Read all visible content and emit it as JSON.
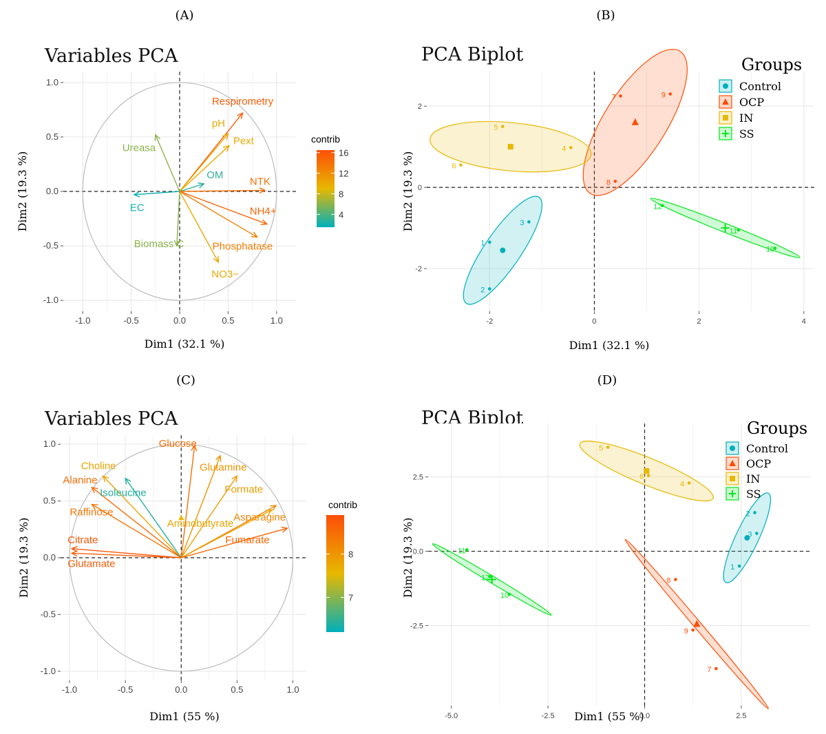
{
  "chart_data": [
    {
      "panel_label": "(A)",
      "type": "scatter",
      "subtype": "pca-variables",
      "title": "Variables PCA",
      "xlabel": "Dim1 (32.1 %)",
      "ylabel": "Dim2 (19.3 %)",
      "xlim": [
        -1.2,
        1.2
      ],
      "ylim": [
        -1.1,
        1.1
      ],
      "xticks": [
        "-1.0",
        "-0.5",
        "0.0",
        "0.5",
        "1.0"
      ],
      "yticks": [
        "-1.0",
        "-0.5",
        "0.0",
        "0.5",
        "1.0"
      ],
      "legend": {
        "title": "contrib",
        "ticks": [
          "16",
          "12",
          "8",
          "4"
        ],
        "tick_values": [
          16,
          12,
          8,
          4
        ],
        "min": 1.5,
        "max": 16.5,
        "colors": [
          "#00AFBB",
          "#E7B800",
          "#FC4E07"
        ],
        "position": "right"
      },
      "vectors": [
        {
          "name": "Respirometry",
          "x": 0.65,
          "y": 0.72,
          "contrib": 15.5
        },
        {
          "name": "pH",
          "x": 0.5,
          "y": 0.53,
          "contrib": 10
        },
        {
          "name": "Pext",
          "x": 0.51,
          "y": 0.42,
          "contrib": 10
        },
        {
          "name": "OM",
          "x": 0.25,
          "y": 0.07,
          "contrib": 3
        },
        {
          "name": "NTK",
          "x": 0.88,
          "y": 0.01,
          "contrib": 14
        },
        {
          "name": "NH4+",
          "x": 0.9,
          "y": -0.3,
          "contrib": 15
        },
        {
          "name": "Phosphatase",
          "x": 0.8,
          "y": -0.42,
          "contrib": 13
        },
        {
          "name": "NO3−",
          "x": 0.4,
          "y": -0.65,
          "contrib": 10
        },
        {
          "name": "Ureasa",
          "x": -0.25,
          "y": 0.52,
          "contrib": 6
        },
        {
          "name": "EC",
          "x": -0.47,
          "y": -0.03,
          "contrib": 2
        },
        {
          "name": "Biomass C",
          "x": -0.03,
          "y": -0.5,
          "contrib": 6
        }
      ]
    },
    {
      "panel_label": "(B)",
      "type": "scatter",
      "subtype": "pca-biplot",
      "title": "PCA Biplot",
      "xlabel": "Dim1 (32.1 %)",
      "ylabel": "Dim2 (19.3 %)",
      "xlim": [
        -3.2,
        4.2
      ],
      "ylim": [
        -3.05,
        2.85
      ],
      "xticks": [
        "-2",
        "0",
        "2",
        "4"
      ],
      "yticks": [
        "-2",
        "0",
        "2"
      ],
      "legend_title": "Groups",
      "groups": [
        {
          "name": "Control",
          "color": "#00AFBB",
          "shape": "circle",
          "center": [
            -1.75,
            -1.55
          ],
          "ellipse": {
            "rx": 1.48,
            "ry": 0.36,
            "angle": 62
          },
          "points": [
            {
              "label": "1",
              "x": -2.0,
              "y": -1.35
            },
            {
              "label": "2",
              "x": -2.0,
              "y": -2.5
            },
            {
              "label": "3",
              "x": -1.25,
              "y": -0.85
            }
          ]
        },
        {
          "name": "OCP",
          "color": "#FC4E07",
          "shape": "triangle",
          "center": [
            0.78,
            1.6
          ],
          "ellipse": {
            "rx": 1.95,
            "ry": 0.62,
            "angle": 64
          },
          "points": [
            {
              "label": "7",
              "x": 0.5,
              "y": 2.25
            },
            {
              "label": "9",
              "x": 1.45,
              "y": 2.3
            },
            {
              "label": "8",
              "x": 0.4,
              "y": 0.15
            }
          ]
        },
        {
          "name": "IN",
          "color": "#E7B800",
          "shape": "square",
          "center": [
            -1.6,
            1.0
          ],
          "ellipse": {
            "rx": 1.55,
            "ry": 0.59,
            "angle": -7
          },
          "points": [
            {
              "label": "5",
              "x": -1.75,
              "y": 1.5
            },
            {
              "label": "4",
              "x": -0.45,
              "y": 0.98
            },
            {
              "label": "6",
              "x": -2.55,
              "y": 0.55
            }
          ]
        },
        {
          "name": "SS",
          "color": "#00E61A",
          "shape": "cross",
          "center": [
            2.5,
            -1.0
          ],
          "ellipse": {
            "rx": 1.6,
            "ry": 0.1,
            "angle": -27
          },
          "points": [
            {
              "label": "12",
              "x": 1.3,
              "y": -0.45
            },
            {
              "label": "11",
              "x": 2.75,
              "y": -1.05
            },
            {
              "label": "10",
              "x": 3.45,
              "y": -1.5
            }
          ]
        }
      ]
    },
    {
      "panel_label": "(C)",
      "type": "scatter",
      "subtype": "pca-variables",
      "title": "Variables PCA",
      "xlabel": "Dim1 (55 %)",
      "ylabel": "Dim2 (19.3 %)",
      "xlim": [
        -1.08,
        1.12
      ],
      "ylim": [
        -1.08,
        1.08
      ],
      "xticks": [
        "-1.0",
        "-0.5",
        "0.0",
        "0.5",
        "1.0"
      ],
      "yticks": [
        "-1.0",
        "-0.5",
        "0.0",
        "0.5",
        "1.0"
      ],
      "legend": {
        "title": "contrib",
        "ticks": [
          "8",
          "7"
        ],
        "tick_values": [
          8,
          7
        ],
        "min": 6.2,
        "max": 8.9,
        "colors": [
          "#00AFBB",
          "#E7B800",
          "#FC4E07"
        ],
        "position": "right"
      },
      "vectors": [
        {
          "name": "Glucose",
          "x": 0.12,
          "y": 0.99,
          "contrib": 8.5
        },
        {
          "name": "Glutamine",
          "x": 0.35,
          "y": 0.9,
          "contrib": 8
        },
        {
          "name": "Formate",
          "x": 0.5,
          "y": 0.72,
          "contrib": 7.9
        },
        {
          "name": "Asparagine",
          "x": 0.85,
          "y": 0.46,
          "contrib": 8.2
        },
        {
          "name": "Aminobutyrate",
          "x": 0.81,
          "y": 0.42,
          "contrib": 7.8
        },
        {
          "name": "Fumarate",
          "x": 0.95,
          "y": 0.26,
          "contrib": 8.6
        },
        {
          "name": "Choline",
          "x": -0.7,
          "y": 0.72,
          "contrib": 7.8
        },
        {
          "name": "Alanine",
          "x": -0.8,
          "y": 0.62,
          "contrib": 8.5
        },
        {
          "name": "Isoleucine",
          "x": -0.5,
          "y": 0.7,
          "contrib": 6.4
        },
        {
          "name": "Raffinose",
          "x": -0.8,
          "y": 0.47,
          "contrib": 8.4
        },
        {
          "name": "Citrate",
          "x": -0.98,
          "y": 0.08,
          "contrib": 8.8
        },
        {
          "name": "Glutamate",
          "x": -0.98,
          "y": 0.04,
          "contrib": 8.7
        }
      ],
      "extra_marks": [
        {
          "type": "triangle",
          "x": 0.0,
          "y": 0.35,
          "color": "#E7B800"
        }
      ]
    },
    {
      "panel_label": "(D)",
      "type": "scatter",
      "subtype": "pca-biplot",
      "title": "PCA Biplot",
      "xlabel": "Dim1 (55 %)",
      "ylabel": "Dim2 (19.3 %)",
      "xlim": [
        -5.6,
        4.3
      ],
      "ylim": [
        -5.2,
        4.3
      ],
      "xticks": [
        "-5.0",
        "-2.5",
        "0.0",
        "2.5"
      ],
      "yticks": [
        "2.5",
        "0.0",
        "-2.5"
      ],
      "legend_title": "Groups",
      "groups": [
        {
          "name": "Control",
          "color": "#00AFBB",
          "shape": "circle",
          "center": [
            2.65,
            0.45
          ],
          "ellipse": {
            "rx": 1.6,
            "ry": 0.3,
            "angle": 70
          },
          "points": [
            {
              "label": "1",
              "x": 2.45,
              "y": -0.5
            },
            {
              "label": "2",
              "x": 2.85,
              "y": 1.3
            },
            {
              "label": "3",
              "x": 2.9,
              "y": 0.6
            }
          ]
        },
        {
          "name": "OCP",
          "color": "#FC4E07",
          "shape": "triangle",
          "center": [
            1.35,
            -2.45
          ],
          "ellipse": {
            "rx": 3.4,
            "ry": 0.1,
            "angle": -57
          },
          "points": [
            {
              "label": "8",
              "x": 0.8,
              "y": -0.95
            },
            {
              "label": "9",
              "x": 1.25,
              "y": -2.65
            },
            {
              "label": "7",
              "x": 1.85,
              "y": -3.95
            }
          ]
        },
        {
          "name": "IN",
          "color": "#E7B800",
          "shape": "square",
          "center": [
            0.05,
            2.7
          ],
          "ellipse": {
            "rx": 1.95,
            "ry": 0.42,
            "angle": -28
          },
          "points": [
            {
              "label": "5",
              "x": -0.95,
              "y": 3.5
            },
            {
              "label": "6",
              "x": 0.1,
              "y": 2.55
            },
            {
              "label": "4",
              "x": 1.15,
              "y": 2.3
            }
          ]
        },
        {
          "name": "SS",
          "color": "#00E61A",
          "shape": "cross",
          "center": [
            -3.95,
            -0.95
          ],
          "ellipse": {
            "rx": 1.95,
            "ry": 0.1,
            "angle": -38
          },
          "points": [
            {
              "label": "11",
              "x": -4.6,
              "y": 0.05
            },
            {
              "label": "12",
              "x": -4.0,
              "y": -0.85
            },
            {
              "label": "10",
              "x": -3.5,
              "y": -1.45
            }
          ]
        }
      ]
    }
  ]
}
